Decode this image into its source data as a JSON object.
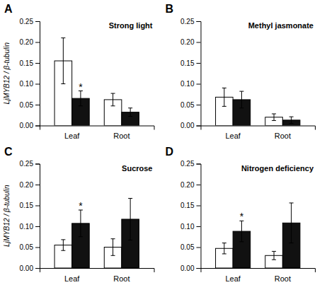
{
  "chart_data": [
    {
      "type": "bar",
      "label": "A",
      "title": "Strong light",
      "y_label": "LjMYB12 / β-tubulin",
      "categories": [
        "Leaf",
        "Root"
      ],
      "series": [
        {
          "color": "#ffffff",
          "values": [
            0.155,
            0.062
          ],
          "errors": [
            0.055,
            0.015
          ]
        },
        {
          "color": "#111111",
          "values": [
            0.065,
            0.032
          ],
          "errors": [
            0.018,
            0.01
          ]
        }
      ],
      "annotations": [
        {
          "text": "*",
          "x": "Leaf",
          "series": 1
        }
      ],
      "ylim": [
        0,
        0.25
      ],
      "yticks": [
        {
          "value": 0,
          "label": "0.00"
        },
        0.05,
        {
          "value": 0.1,
          "label": "0.10"
        },
        0.15,
        {
          "value": 0.2,
          "label": "0.20"
        },
        0.25
      ]
    },
    {
      "type": "bar",
      "label": "B",
      "title": "Methyl jasmonate",
      "categories": [
        "Leaf",
        "Root"
      ],
      "series": [
        {
          "color": "#ffffff",
          "values": [
            0.068,
            0.02
          ],
          "errors": [
            0.022,
            0.008
          ]
        },
        {
          "color": "#111111",
          "values": [
            0.062,
            0.013
          ],
          "errors": [
            0.02,
            0.008
          ]
        }
      ],
      "ylim": [
        0,
        0.25
      ],
      "yticks": [
        {
          "value": 0,
          "label": "0.00"
        },
        0.05,
        {
          "value": 0.1,
          "label": "0.10"
        },
        0.15,
        {
          "value": 0.2,
          "label": "0.20"
        },
        0.25
      ]
    },
    {
      "type": "bar",
      "label": "C",
      "title": "Sucrose",
      "y_label": "LjMYB12 / β-tubulin",
      "categories": [
        "Leaf",
        "Root"
      ],
      "series": [
        {
          "color": "#ffffff",
          "values": [
            0.055,
            0.05
          ],
          "errors": [
            0.013,
            0.02
          ]
        },
        {
          "color": "#111111",
          "values": [
            0.107,
            0.117
          ],
          "errors": [
            0.032,
            0.05
          ]
        }
      ],
      "annotations": [
        {
          "text": "*",
          "x": "Leaf",
          "series": 1
        }
      ],
      "ylim": [
        0,
        0.25
      ],
      "yticks": [
        {
          "value": 0,
          "label": "0.00"
        },
        0.05,
        {
          "value": 0.1,
          "label": "0.10"
        },
        0.15,
        {
          "value": 0.2,
          "label": "0.20"
        },
        0.25
      ]
    },
    {
      "type": "bar",
      "label": "D",
      "title": "Nitrogen deficiency",
      "categories": [
        "Leaf",
        "Root"
      ],
      "series": [
        {
          "color": "#ffffff",
          "values": [
            0.047,
            0.03
          ],
          "errors": [
            0.013,
            0.01
          ]
        },
        {
          "color": "#111111",
          "values": [
            0.088,
            0.108
          ],
          "errors": [
            0.025,
            0.048
          ]
        }
      ],
      "annotations": [
        {
          "text": "*",
          "x": "Leaf",
          "series": 1
        }
      ],
      "ylim": [
        0,
        0.25
      ],
      "yticks": [
        {
          "value": 0,
          "label": "0.00"
        },
        0.05,
        {
          "value": 0.1,
          "label": "0.10"
        },
        0.15,
        {
          "value": 0.2,
          "label": "0.20"
        },
        0.25
      ]
    }
  ]
}
